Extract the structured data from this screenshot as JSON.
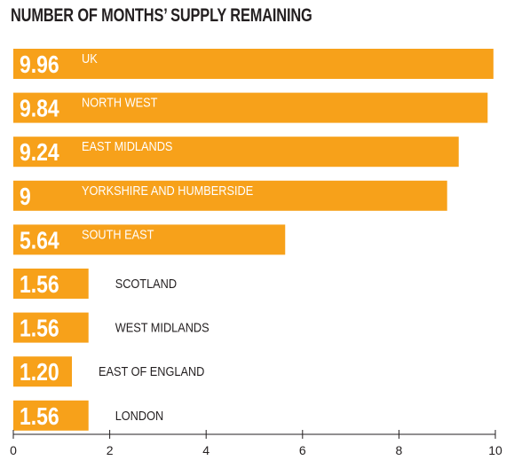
{
  "chart_data": {
    "type": "bar",
    "orientation": "horizontal",
    "title": "NUMBER OF MONTHS’ SUPPLY REMAINING",
    "categories": [
      "UK",
      "NORTH WEST",
      "EAST MIDLANDS",
      "YORKSHIRE AND HUMBERSIDE",
      "SOUTH EAST",
      "SCOTLAND",
      "WEST MIDLANDS",
      "EAST OF ENGLAND",
      "LONDON"
    ],
    "values": [
      9.96,
      9.84,
      9.24,
      9,
      5.64,
      1.56,
      1.56,
      1.2,
      1.56
    ],
    "value_labels": [
      "9.96",
      "9.84",
      "9.24",
      "9",
      "5.64",
      "1.56",
      "1.56",
      "1.20",
      "1.56"
    ],
    "xlim": [
      0,
      10
    ],
    "x_ticks": [
      "0",
      "2",
      "4",
      "6",
      "8",
      "10"
    ],
    "xlabel": "",
    "ylabel": "",
    "grid": false,
    "legend": "none",
    "colors": {
      "bar": "#F7A11A",
      "value_text": "#FFFFFF",
      "label_text": "#231F20",
      "axis": "#231F20"
    }
  }
}
